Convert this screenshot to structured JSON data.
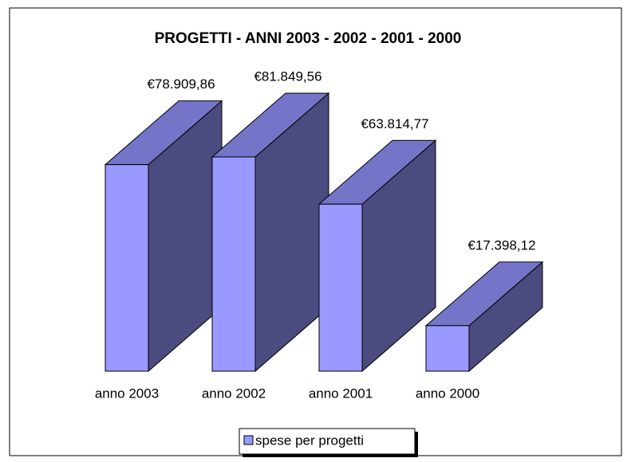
{
  "chart_data": {
    "type": "bar3d",
    "title": "PROGETTI - ANNI 2003 - 2002 - 2001 - 2000",
    "categories": [
      "anno 2003",
      "anno 2002",
      "anno 2001",
      "anno 2000"
    ],
    "series": [
      {
        "name": "spese per progetti",
        "color": "#9999ff",
        "values": [
          78909.86,
          81849.56,
          63814.77,
          17398.12
        ],
        "value_labels": [
          "€78.909,86",
          "€81.849,56",
          "€63.814,77",
          "€17.398,12"
        ]
      }
    ],
    "legend": "bottom"
  }
}
